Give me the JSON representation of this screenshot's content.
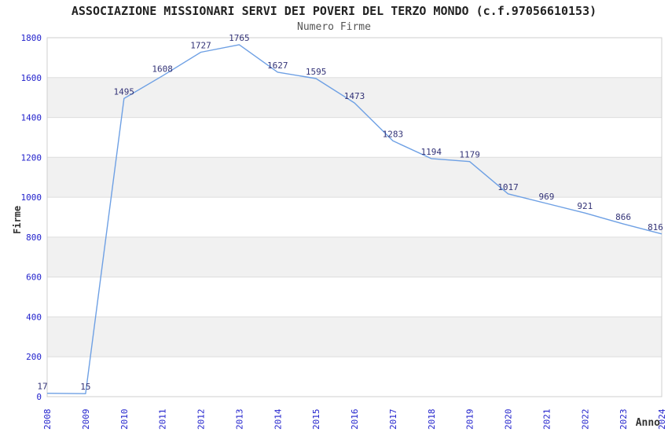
{
  "header": {
    "title": "ASSOCIAZIONE MISSIONARI SERVI DEI POVERI DEL TERZO MONDO (c.f.97056610153)",
    "subtitle": "Numero Firme"
  },
  "chart_data": {
    "type": "line",
    "title": "ASSOCIAZIONE MISSIONARI SERVI DEI POVERI DEL TERZO MONDO (c.f.97056610153)",
    "subtitle": "Numero Firme",
    "xlabel": "Anno",
    "ylabel": "Firme",
    "categories": [
      "2008",
      "2009",
      "2010",
      "2011",
      "2012",
      "2013",
      "2014",
      "2015",
      "2016",
      "2017",
      "2018",
      "2019",
      "2020",
      "2021",
      "2022",
      "2023",
      "2024"
    ],
    "series": [
      {
        "name": "Numero Firme",
        "values": [
          17,
          15,
          1495,
          1608,
          1727,
          1765,
          1627,
          1595,
          1473,
          1283,
          1194,
          1179,
          1017,
          969,
          921,
          866,
          816
        ]
      }
    ],
    "ylim": [
      0,
      1800
    ],
    "ytick_step": 200,
    "yticks": [
      0,
      200,
      400,
      600,
      800,
      1000,
      1200,
      1400,
      1600,
      1800
    ],
    "grid": "horizontal gridlines with alternating shaded bands",
    "legend": "none",
    "point_labels": true,
    "colors": {
      "line": "#6EA0E4",
      "point_label": "#333377",
      "tick_label": "#2222CC",
      "band": "#F1F1F1",
      "gridline": "#DDDDDD",
      "plot_border": "#CFCFCF",
      "title": "#222222",
      "subtitle": "#555555",
      "axis_title": "#333333",
      "background": "#FFFFFF"
    }
  }
}
